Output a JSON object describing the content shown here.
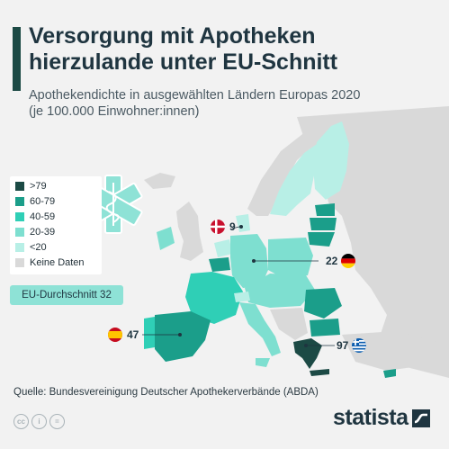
{
  "header": {
    "title": "Versorgung mit Apotheken\nhierzulande unter EU-Schnitt",
    "subtitle_line1": "Apothekendichte in ausgewählten Ländern Europas 2020",
    "subtitle_line2": "(je 100.000 Einwohner:innen)",
    "accent_color": "#1c4a45"
  },
  "legend": {
    "items": [
      {
        "label": ">79",
        "color": "#1c4a45"
      },
      {
        "label": "60-79",
        "color": "#1b9e8a"
      },
      {
        "label": "40-59",
        "color": "#2fcfb6"
      },
      {
        "label": "20-39",
        "color": "#7edfd0"
      },
      {
        "label": "<20",
        "color": "#b8efe6"
      },
      {
        "label": "Keine Daten",
        "color": "#d9d9d9"
      }
    ]
  },
  "average": {
    "label": "EU-Durchschnitt 32"
  },
  "callouts": {
    "denmark": {
      "value": "9",
      "flag": "denmark-flag-icon"
    },
    "germany": {
      "value": "22",
      "flag": "germany-flag-icon"
    },
    "spain": {
      "value": "47",
      "flag": "spain-flag-icon"
    },
    "greece": {
      "value": "97",
      "flag": "greece-flag-icon"
    }
  },
  "footer": {
    "source": "Quelle: Bundesvereinigung Deutscher Apothekerverbände (ABDA)",
    "cc_icons": [
      "cc",
      "i",
      "="
    ],
    "brand": "statista"
  },
  "colors": {
    "no_data": "#d9d9d9",
    "background": "#f2f2f2",
    "pharmacy_icon": "#8ee2d6"
  }
}
